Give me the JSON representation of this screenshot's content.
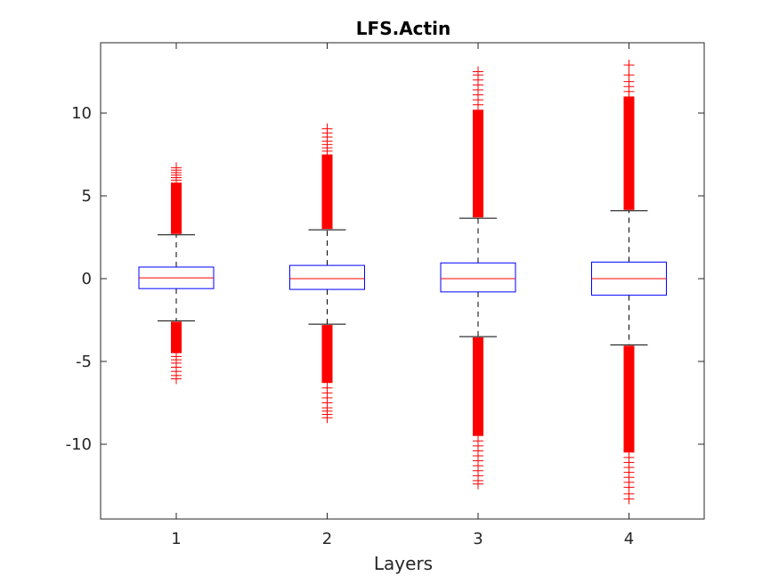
{
  "chart_data": {
    "type": "boxplot",
    "title": "LFS.Actin",
    "xlabel": "Layers",
    "ylabel": "",
    "ylim": [
      -14.5,
      14
    ],
    "yticks": [
      -10,
      -5,
      0,
      5,
      10
    ],
    "ytick_labels": [
      "-10",
      "-5",
      "0",
      "5",
      "10"
    ],
    "categories": [
      "1",
      "2",
      "3",
      "4"
    ],
    "grid": false,
    "colors": {
      "box": "#0000ff",
      "median": "#ff0000",
      "outlier": "#ff0000",
      "whisker": "#000000",
      "axes": "#262626"
    },
    "boxes": [
      {
        "category": "1",
        "q1": -0.6,
        "median": 0.05,
        "q3": 0.7,
        "whisker_low": -2.55,
        "whisker_high": 2.65,
        "outlier_high_dense": [
          2.7,
          5.8
        ],
        "outlier_high_sparse": [
          5.95,
          6.1,
          6.25,
          6.4,
          6.55,
          6.7
        ],
        "outlier_low_dense": [
          -4.5,
          -2.6
        ],
        "outlier_low_sparse": [
          -4.7,
          -4.9,
          -5.1,
          -5.35,
          -5.6,
          -5.85,
          -6.05
        ]
      },
      {
        "category": "2",
        "q1": -0.65,
        "median": 0.0,
        "q3": 0.8,
        "whisker_low": -2.75,
        "whisker_high": 2.95,
        "outlier_high_dense": [
          3.0,
          7.5
        ],
        "outlier_high_sparse": [
          7.7,
          7.9,
          8.1,
          8.3,
          8.55,
          8.8,
          9.05
        ],
        "outlier_low_dense": [
          -6.3,
          -2.8
        ],
        "outlier_low_sparse": [
          -6.6,
          -6.9,
          -7.2,
          -7.5,
          -7.8,
          -8.0,
          -8.2,
          -8.4
        ]
      },
      {
        "category": "3",
        "q1": -0.8,
        "median": 0.0,
        "q3": 0.95,
        "whisker_low": -3.5,
        "whisker_high": 3.65,
        "outlier_high_dense": [
          3.7,
          10.2
        ],
        "outlier_high_sparse": [
          10.5,
          10.8,
          11.1,
          11.4,
          11.7,
          12.0,
          12.3,
          12.5
        ],
        "outlier_low_dense": [
          -9.5,
          -3.55
        ],
        "outlier_low_sparse": [
          -9.8,
          -10.1,
          -10.4,
          -10.7,
          -11.0,
          -11.3,
          -11.6,
          -11.9,
          -12.2,
          -12.4
        ]
      },
      {
        "category": "4",
        "q1": -1.0,
        "median": 0.0,
        "q3": 1.0,
        "whisker_low": -4.0,
        "whisker_high": 4.1,
        "outlier_high_dense": [
          4.15,
          11.0
        ],
        "outlier_high_sparse": [
          11.3,
          11.6,
          11.9,
          12.3,
          12.9
        ],
        "outlier_low_dense": [
          -10.5,
          -4.05
        ],
        "outlier_low_sparse": [
          -10.8,
          -11.1,
          -11.4,
          -11.7,
          -12.0,
          -12.3,
          -12.6,
          -13.0,
          -13.3
        ]
      }
    ]
  }
}
